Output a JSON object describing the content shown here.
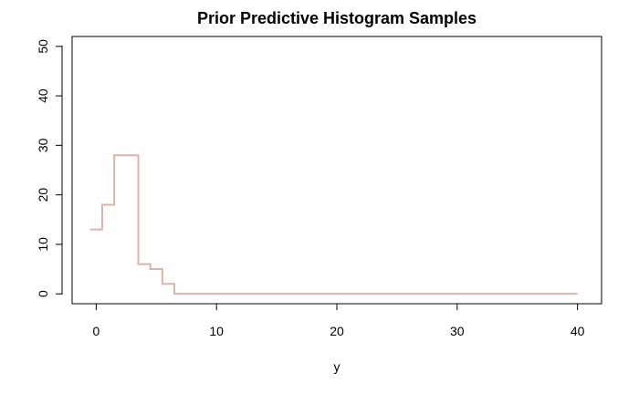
{
  "chart_data": {
    "type": "line",
    "style": "step",
    "title": "Prior Predictive Histogram Samples",
    "xlabel": "y",
    "ylabel": "",
    "xlim": [
      -2,
      42
    ],
    "ylim": [
      -2,
      52
    ],
    "x_ticks": [
      0,
      10,
      20,
      30,
      40
    ],
    "y_ticks": [
      0,
      10,
      20,
      30,
      40,
      50
    ],
    "grid": false,
    "legend": "none",
    "color": "#d9b4ad",
    "x": [
      0,
      1,
      2,
      3,
      4,
      5,
      6,
      7,
      8,
      9,
      10,
      11,
      12,
      13,
      14,
      15,
      16,
      17,
      18,
      19,
      20,
      21,
      22,
      23,
      24,
      25,
      26,
      27,
      28,
      29,
      30,
      31,
      32,
      33,
      34,
      35,
      36,
      37,
      38,
      39,
      40
    ],
    "series": [
      {
        "values": [
          13,
          18,
          28,
          28,
          6,
          5,
          2,
          0,
          0,
          0,
          0,
          0,
          0,
          0,
          0,
          0,
          0,
          0,
          0,
          0,
          0,
          0,
          0,
          0,
          0,
          0,
          0,
          0,
          0,
          0,
          0,
          0,
          0,
          0,
          0,
          0,
          0,
          0,
          0,
          0,
          0
        ]
      }
    ]
  }
}
